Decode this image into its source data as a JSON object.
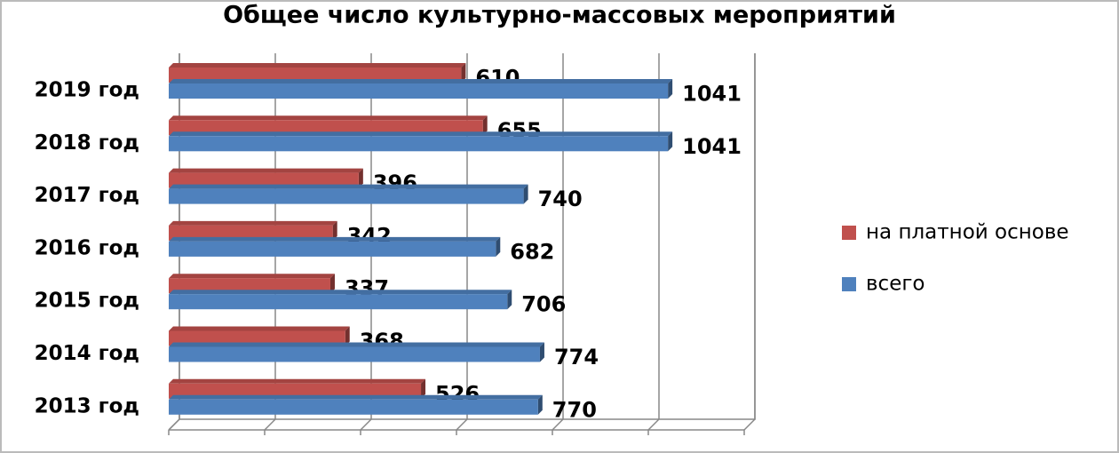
{
  "chart_data": {
    "type": "bar3d_horizontal",
    "title": "Общее число культурно-массовых  мероприятий",
    "categories": [
      "2019 год",
      "2018 год",
      "2017 год",
      "2016 год",
      "2015 год",
      "2014 год",
      "2013 год"
    ],
    "series": [
      {
        "name": "на платной основе",
        "color": "#c0504d",
        "values": [
          610,
          655,
          396,
          342,
          337,
          368,
          526
        ]
      },
      {
        "name": "всего",
        "color": "#4f81bd",
        "values": [
          1041,
          1041,
          740,
          682,
          706,
          774,
          770
        ]
      }
    ],
    "xlim": [
      0,
      1200
    ],
    "xticks": [
      0,
      200,
      400,
      600,
      800,
      1000,
      1200
    ],
    "grid": true,
    "legend": "right"
  }
}
